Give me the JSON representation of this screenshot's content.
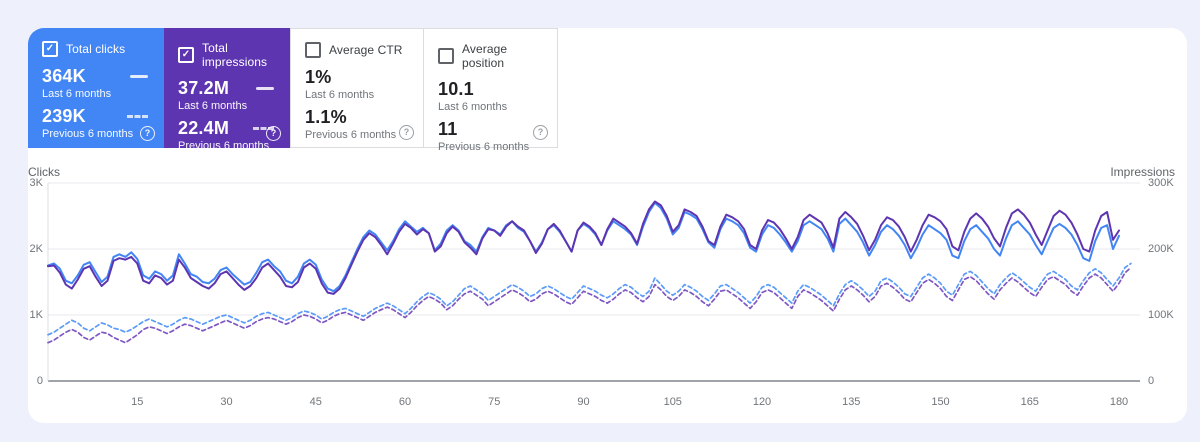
{
  "ui": {
    "check_glyph": "✓",
    "help_glyph": "?"
  },
  "colors": {
    "page_bg": "#eef1fb",
    "panel_bg": "#ffffff",
    "clicks_accent": "#4285f4",
    "impressions_accent": "#5e35b1",
    "grid_line": "#e8eaed",
    "zero_line": "#80868b",
    "axis_line": "#dadce0",
    "tick_text": "#70757a"
  },
  "cards": [
    {
      "label": "Total clicks",
      "selected": true,
      "accent_color": "#4285f4",
      "current_value": "364K",
      "current_period": "Last 6 months",
      "previous_value": "239K",
      "previous_period": "Previous 6 months"
    },
    {
      "label": "Total impressions",
      "selected": true,
      "accent_color": "#5e35b1",
      "current_value": "37.2M",
      "current_period": "Last 6 months",
      "previous_value": "22.4M",
      "previous_period": "Previous 6 months"
    },
    {
      "label": "Average CTR",
      "selected": false,
      "accent_color": null,
      "current_value": "1%",
      "current_period": "Last 6 months",
      "previous_value": "1.1%",
      "previous_period": "Previous 6 months"
    },
    {
      "label": "Average position",
      "selected": false,
      "accent_color": null,
      "current_value": "10.1",
      "current_period": "Last 6 months",
      "previous_value": "11",
      "previous_period": "Previous 6 months"
    }
  ],
  "chart_data": {
    "type": "line",
    "grid": true,
    "legend_position": "none",
    "x_axis": {
      "unit": "days",
      "range": [
        0,
        184
      ],
      "ticks": [
        15,
        30,
        45,
        60,
        75,
        90,
        105,
        120,
        135,
        150,
        165,
        180
      ]
    },
    "left_axis": {
      "title": "Clicks",
      "max": 3,
      "unit": "K clicks",
      "ticks": [
        {
          "label": "3K",
          "value": 3
        },
        {
          "label": "2K",
          "value": 2
        },
        {
          "label": "1K",
          "value": 1
        },
        {
          "label": "0",
          "value": 0
        }
      ]
    },
    "right_axis": {
      "title": "Impressions",
      "max": 300,
      "unit": "K impressions",
      "ticks": [
        {
          "label": "300K",
          "value": 300
        },
        {
          "label": "200K",
          "value": 200
        },
        {
          "label": "100K",
          "value": 100
        },
        {
          "label": "0",
          "value": 0
        }
      ]
    },
    "series": [
      {
        "name": "Clicks - Last 6 months",
        "axis": "left",
        "style": "solid",
        "color": "#4285f4",
        "values": [
          1.75,
          1.78,
          1.7,
          1.52,
          1.48,
          1.6,
          1.76,
          1.8,
          1.65,
          1.5,
          1.58,
          1.88,
          1.92,
          1.88,
          1.95,
          1.85,
          1.6,
          1.55,
          1.66,
          1.62,
          1.52,
          1.6,
          1.92,
          1.78,
          1.62,
          1.58,
          1.5,
          1.48,
          1.55,
          1.68,
          1.72,
          1.62,
          1.54,
          1.46,
          1.5,
          1.64,
          1.8,
          1.84,
          1.74,
          1.66,
          1.52,
          1.48,
          1.58,
          1.78,
          1.84,
          1.76,
          1.54,
          1.4,
          1.36,
          1.44,
          1.6,
          1.8,
          2.0,
          2.18,
          2.28,
          2.22,
          2.1,
          1.98,
          2.12,
          2.3,
          2.42,
          2.34,
          2.26,
          2.32,
          2.24,
          1.98,
          2.08,
          2.28,
          2.36,
          2.28,
          2.12,
          2.06,
          1.96,
          2.18,
          2.32,
          2.28,
          2.22,
          2.36,
          2.42,
          2.32,
          2.26,
          2.12,
          1.96,
          2.1,
          2.3,
          2.36,
          2.26,
          2.12,
          1.96,
          2.28,
          2.38,
          2.32,
          2.22,
          2.06,
          2.28,
          2.42,
          2.36,
          2.3,
          2.22,
          2.06,
          2.34,
          2.56,
          2.7,
          2.62,
          2.46,
          2.22,
          2.32,
          2.56,
          2.52,
          2.46,
          2.3,
          2.1,
          2.02,
          2.3,
          2.46,
          2.42,
          2.36,
          2.24,
          2.02,
          1.96,
          2.22,
          2.36,
          2.32,
          2.22,
          2.1,
          1.96,
          2.12,
          2.36,
          2.42,
          2.36,
          2.3,
          2.16,
          1.96,
          2.38,
          2.46,
          2.36,
          2.26,
          2.1,
          1.9,
          2.06,
          2.26,
          2.36,
          2.3,
          2.2,
          2.06,
          1.86,
          2.02,
          2.22,
          2.36,
          2.3,
          2.24,
          2.14,
          1.9,
          1.86,
          2.12,
          2.3,
          2.36,
          2.26,
          2.16,
          2.0,
          1.9,
          2.16,
          2.36,
          2.42,
          2.32,
          2.22,
          2.06,
          1.92,
          2.12,
          2.32,
          2.38,
          2.32,
          2.22,
          2.06,
          1.86,
          1.82,
          2.12,
          2.32,
          2.36,
          2.0,
          2.2
        ]
      },
      {
        "name": "Impressions - Last 6 months",
        "axis": "right",
        "style": "solid",
        "color": "#5e35b1",
        "values": [
          174,
          175,
          164,
          146,
          140,
          154,
          170,
          174,
          158,
          144,
          152,
          182,
          186,
          184,
          188,
          178,
          152,
          148,
          160,
          156,
          146,
          152,
          184,
          172,
          156,
          150,
          144,
          140,
          148,
          162,
          166,
          156,
          146,
          138,
          144,
          156,
          172,
          178,
          168,
          158,
          144,
          142,
          150,
          172,
          178,
          170,
          148,
          134,
          132,
          140,
          156,
          176,
          196,
          214,
          224,
          218,
          206,
          192,
          208,
          226,
          238,
          232,
          222,
          230,
          224,
          196,
          204,
          224,
          234,
          226,
          210,
          202,
          192,
          216,
          230,
          228,
          220,
          234,
          242,
          234,
          228,
          212,
          194,
          208,
          230,
          238,
          228,
          212,
          196,
          228,
          240,
          234,
          224,
          206,
          230,
          246,
          240,
          234,
          224,
          208,
          238,
          260,
          272,
          266,
          250,
          226,
          236,
          260,
          256,
          250,
          234,
          212,
          206,
          234,
          252,
          248,
          242,
          230,
          206,
          200,
          228,
          244,
          240,
          230,
          216,
          200,
          218,
          244,
          252,
          246,
          240,
          224,
          202,
          246,
          256,
          248,
          238,
          220,
          198,
          214,
          236,
          248,
          244,
          234,
          218,
          196,
          214,
          236,
          252,
          248,
          242,
          230,
          204,
          198,
          226,
          246,
          254,
          246,
          234,
          216,
          204,
          232,
          254,
          260,
          252,
          240,
          222,
          206,
          228,
          250,
          258,
          252,
          240,
          222,
          200,
          196,
          228,
          250,
          256,
          214,
          228
        ]
      },
      {
        "name": "Clicks - Previous 6 months",
        "axis": "left",
        "style": "dashed",
        "color": "#5b9bf8",
        "values": [
          0.7,
          0.74,
          0.8,
          0.86,
          0.92,
          0.88,
          0.8,
          0.76,
          0.82,
          0.88,
          0.85,
          0.8,
          0.78,
          0.74,
          0.78,
          0.84,
          0.9,
          0.94,
          0.9,
          0.86,
          0.82,
          0.86,
          0.92,
          0.96,
          0.94,
          0.9,
          0.86,
          0.9,
          0.94,
          0.98,
          1.0,
          0.96,
          0.92,
          0.88,
          0.92,
          0.98,
          1.02,
          1.04,
          1.0,
          0.96,
          0.92,
          0.96,
          1.02,
          1.06,
          1.04,
          1.0,
          0.94,
          0.98,
          1.04,
          1.08,
          1.1,
          1.06,
          1.02,
          0.98,
          1.04,
          1.1,
          1.14,
          1.18,
          1.14,
          1.08,
          1.02,
          1.1,
          1.2,
          1.28,
          1.34,
          1.3,
          1.24,
          1.14,
          1.2,
          1.3,
          1.4,
          1.44,
          1.38,
          1.32,
          1.22,
          1.28,
          1.34,
          1.4,
          1.46,
          1.42,
          1.36,
          1.28,
          1.32,
          1.4,
          1.44,
          1.4,
          1.34,
          1.28,
          1.24,
          1.34,
          1.44,
          1.4,
          1.36,
          1.3,
          1.26,
          1.32,
          1.4,
          1.46,
          1.42,
          1.34,
          1.28,
          1.36,
          1.56,
          1.46,
          1.36,
          1.3,
          1.36,
          1.46,
          1.42,
          1.36,
          1.28,
          1.22,
          1.32,
          1.44,
          1.46,
          1.4,
          1.34,
          1.26,
          1.18,
          1.28,
          1.42,
          1.46,
          1.42,
          1.34,
          1.26,
          1.18,
          1.36,
          1.46,
          1.42,
          1.36,
          1.3,
          1.22,
          1.14,
          1.32,
          1.46,
          1.52,
          1.46,
          1.38,
          1.28,
          1.36,
          1.52,
          1.56,
          1.5,
          1.42,
          1.32,
          1.28,
          1.42,
          1.56,
          1.62,
          1.56,
          1.48,
          1.36,
          1.3,
          1.46,
          1.62,
          1.66,
          1.6,
          1.5,
          1.4,
          1.32,
          1.46,
          1.56,
          1.64,
          1.58,
          1.5,
          1.42,
          1.36,
          1.5,
          1.62,
          1.66,
          1.6,
          1.54,
          1.44,
          1.38,
          1.52,
          1.64,
          1.7,
          1.64,
          1.54,
          1.44,
          1.56,
          1.72,
          1.78
        ]
      },
      {
        "name": "Impressions - Previous 6 months",
        "axis": "right",
        "style": "dashed",
        "color": "#7e57c2",
        "values": [
          58,
          62,
          68,
          74,
          78,
          74,
          66,
          62,
          68,
          74,
          72,
          66,
          62,
          58,
          64,
          70,
          78,
          82,
          80,
          76,
          72,
          76,
          82,
          86,
          84,
          80,
          76,
          80,
          84,
          88,
          92,
          88,
          84,
          80,
          84,
          90,
          94,
          96,
          94,
          90,
          86,
          90,
          96,
          100,
          98,
          94,
          88,
          92,
          98,
          102,
          104,
          100,
          96,
          92,
          98,
          104,
          108,
          112,
          108,
          102,
          96,
          104,
          114,
          122,
          128,
          124,
          118,
          108,
          114,
          124,
          132,
          136,
          130,
          124,
          114,
          120,
          126,
          132,
          138,
          134,
          128,
          120,
          124,
          132,
          136,
          132,
          126,
          120,
          116,
          126,
          136,
          132,
          128,
          122,
          118,
          124,
          132,
          138,
          134,
          126,
          120,
          128,
          146,
          138,
          128,
          122,
          128,
          138,
          134,
          128,
          120,
          114,
          124,
          136,
          138,
          132,
          126,
          118,
          110,
          120,
          134,
          138,
          134,
          126,
          118,
          110,
          128,
          138,
          134,
          128,
          122,
          114,
          106,
          124,
          138,
          144,
          138,
          130,
          120,
          128,
          144,
          148,
          142,
          134,
          124,
          120,
          134,
          148,
          154,
          148,
          140,
          128,
          122,
          138,
          154,
          158,
          152,
          142,
          132,
          124,
          138,
          148,
          156,
          150,
          142,
          134,
          128,
          142,
          154,
          158,
          152,
          146,
          136,
          130,
          144,
          156,
          162,
          156,
          146,
          136,
          148,
          164,
          172
        ]
      }
    ]
  }
}
